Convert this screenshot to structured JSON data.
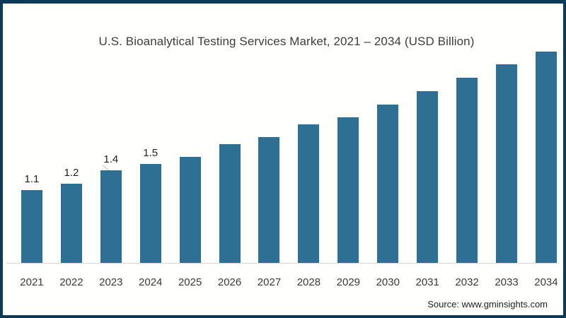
{
  "chart_data": {
    "type": "bar",
    "title": "U.S. Bioanalytical Testing Services Market, 2021 – 2034 (USD Billion)",
    "categories": [
      "2021",
      "2022",
      "2023",
      "2024",
      "2025",
      "2026",
      "2027",
      "2028",
      "2029",
      "2030",
      "2031",
      "2032",
      "2033",
      "2034"
    ],
    "values": [
      1.1,
      1.2,
      1.4,
      1.5,
      1.6,
      1.8,
      1.9,
      2.1,
      2.2,
      2.4,
      2.6,
      2.8,
      3.0,
      3.2
    ],
    "data_labels": [
      "1.1",
      "1.2",
      "1.4",
      "1.5",
      "",
      "",
      "",
      "",
      "",
      "",
      "",
      "",
      "",
      ""
    ],
    "xlabel": "",
    "ylabel": "",
    "ylim": [
      0,
      3.4
    ],
    "grid": false,
    "legend": false,
    "bar_color": "#2e7094",
    "axis_line_color": "#d8d8d8",
    "frame_border_color": "#0d3a56",
    "background_color": "#ffffff"
  },
  "source": {
    "label": "Source: www.gminsights.com"
  }
}
